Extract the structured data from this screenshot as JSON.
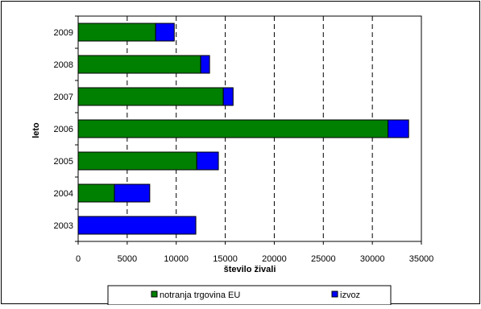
{
  "chart_data": {
    "type": "bar",
    "orientation": "horizontal",
    "stacked": true,
    "categories": [
      "2009",
      "2008",
      "2007",
      "2006",
      "2005",
      "2004",
      "2003"
    ],
    "series": [
      {
        "name": "notranja trgovina EU",
        "color": "#008000",
        "values": [
          7900,
          12500,
          14800,
          31600,
          12100,
          3700,
          0
        ]
      },
      {
        "name": "izvoz",
        "color": "#0000ff",
        "values": [
          1900,
          900,
          1000,
          2100,
          2200,
          3600,
          12000
        ]
      }
    ],
    "xlabel": "število živali",
    "ylabel": "leto",
    "xlim": [
      0,
      35000
    ],
    "xticks": [
      0,
      5000,
      10000,
      15000,
      20000,
      25000,
      30000,
      35000
    ],
    "grid": "vertical dashed",
    "legend_position": "bottom"
  }
}
